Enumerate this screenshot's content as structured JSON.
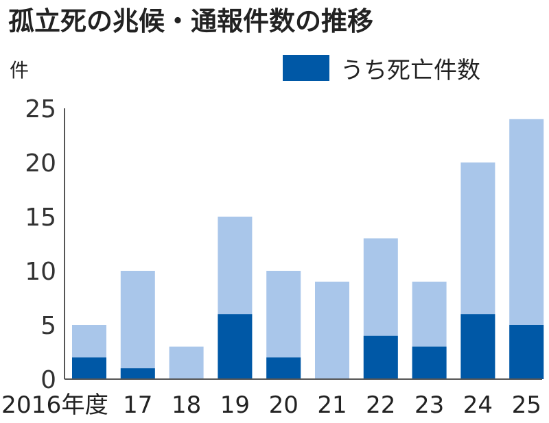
{
  "chart_data": {
    "type": "bar",
    "title": "孤立死の兆候・通報件数の推移",
    "ylabel": "件",
    "categories": [
      "2016年度",
      "17",
      "18",
      "19",
      "20",
      "21",
      "22",
      "23",
      "24",
      "25"
    ],
    "series": [
      {
        "values": [
          5,
          10,
          3,
          15,
          10,
          9,
          13,
          9,
          20,
          24
        ],
        "color": "#a9c6ea"
      },
      {
        "name": "うち死亡件数",
        "values": [
          2,
          1,
          0,
          6,
          2,
          0,
          4,
          3,
          6,
          5
        ],
        "color": "#0058a6"
      }
    ],
    "yticks": [
      0,
      5,
      10,
      15,
      20,
      25
    ],
    "ylim": [
      0,
      25
    ],
    "grid": false,
    "legend": "top-right"
  }
}
